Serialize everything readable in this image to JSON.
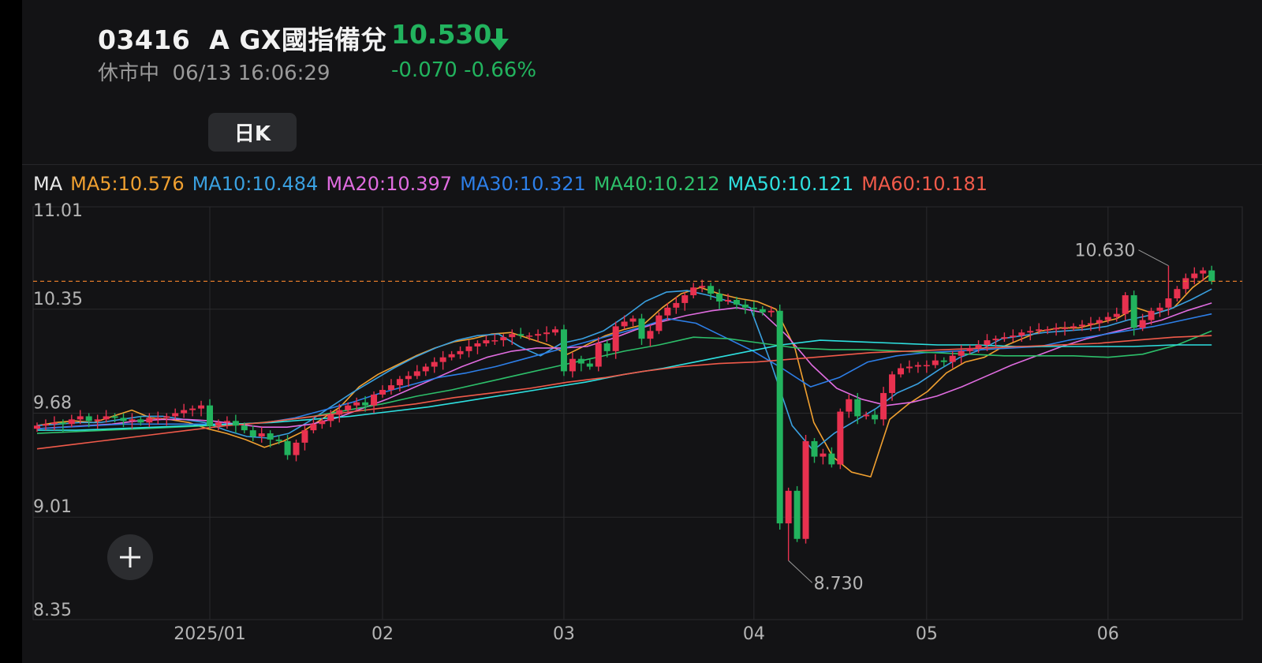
{
  "header": {
    "symbol": "03416  A GX國指備兌",
    "price": "10.530",
    "status": "休市中  06/13 16:06:29",
    "change": "-0.070 -0.66%",
    "down_color": "#22b35e",
    "up_color": "#e8314f",
    "direction_icon": "arrow-down-icon"
  },
  "period_tab": {
    "label": "日K"
  },
  "ma_legend": [
    {
      "label": "MA",
      "color": "#e8e8e8"
    },
    {
      "label": "MA5:10.576",
      "color": "#f0a030"
    },
    {
      "label": "MA10:10.484",
      "color": "#3aa0e0"
    },
    {
      "label": "MA20:10.397",
      "color": "#e06ce0"
    },
    {
      "label": "MA30:10.321",
      "color": "#2d7fe8"
    },
    {
      "label": "MA40:10.212",
      "color": "#2dbf6a"
    },
    {
      "label": "MA50:10.121",
      "color": "#2ee0e0"
    },
    {
      "label": "MA60:10.181",
      "color": "#f05a4a"
    }
  ],
  "add_button": {
    "icon": "plus-icon"
  },
  "chart_data": {
    "type": "candlestick",
    "ylim": [
      8.35,
      11.01
    ],
    "y_ticks": [
      "11.01",
      "10.35",
      "9.68",
      "9.01",
      "8.35"
    ],
    "x_ticks": [
      "2025/01",
      "02",
      "03",
      "04",
      "05",
      "06"
    ],
    "x_tick_index": [
      20,
      40,
      61,
      83,
      103,
      124
    ],
    "last_close": 10.53,
    "annotations": [
      {
        "label": "10.630",
        "index": 131,
        "value": 10.63
      },
      {
        "label": "8.730",
        "index": 87,
        "value": 8.73
      }
    ],
    "closes": [
      9.6,
      9.61,
      9.62,
      9.61,
      9.64,
      9.66,
      9.63,
      9.64,
      9.66,
      9.65,
      9.63,
      9.64,
      9.62,
      9.65,
      9.65,
      9.66,
      9.68,
      9.7,
      9.71,
      9.73,
      9.6,
      9.62,
      9.63,
      9.6,
      9.57,
      9.53,
      9.55,
      9.51,
      9.5,
      9.41,
      9.49,
      9.57,
      9.61,
      9.63,
      9.67,
      9.7,
      9.73,
      9.75,
      9.73,
      9.8,
      9.83,
      9.86,
      9.9,
      9.92,
      9.95,
      9.98,
      10.01,
      10.04,
      10.06,
      10.08,
      10.11,
      10.13,
      10.15,
      10.15,
      10.17,
      10.19,
      10.18,
      10.18,
      10.19,
      10.2,
      10.22,
      9.95,
      10.03,
      10.0,
      9.98,
      10.13,
      10.08,
      10.24,
      10.27,
      10.29,
      10.16,
      10.21,
      10.31,
      10.36,
      10.39,
      10.44,
      10.49,
      10.5,
      10.45,
      10.4,
      10.41,
      10.38,
      10.36,
      10.35,
      10.33,
      10.34,
      8.97,
      9.18,
      8.87,
      9.5,
      9.4,
      9.42,
      9.35,
      9.69,
      9.77,
      9.66,
      9.67,
      9.64,
      9.81,
      9.93,
      9.97,
      9.98,
      9.99,
      9.99,
      10.02,
      10.01,
      10.05,
      10.08,
      10.1,
      10.12,
      10.15,
      10.16,
      10.17,
      10.18,
      10.2,
      10.21,
      10.22,
      10.22,
      10.23,
      10.23,
      10.24,
      10.25,
      10.26,
      10.28,
      10.3,
      10.32,
      10.44,
      10.23,
      10.28,
      10.34,
      10.36,
      10.42,
      10.48,
      10.55,
      10.58,
      10.6,
      10.53
    ],
    "ma_series": {
      "MA5": [
        9.6,
        9.62,
        9.63,
        9.62,
        9.66,
        9.7,
        9.65,
        9.64,
        9.62,
        9.58,
        9.55,
        9.51,
        9.46,
        9.5,
        9.56,
        9.64,
        9.72,
        9.85,
        9.93,
        9.99,
        10.05,
        10.1,
        10.14,
        10.16,
        10.19,
        10.2,
        10.16,
        10.12,
        10.06,
        10.12,
        10.18,
        10.22,
        10.25,
        10.36,
        10.45,
        10.49,
        10.45,
        10.42,
        10.4,
        10.35,
        10.1,
        9.62,
        9.4,
        9.3,
        9.27,
        9.64,
        9.74,
        9.82,
        9.94,
        10.01,
        10.04,
        10.11,
        10.16,
        10.21,
        10.23,
        10.23,
        10.26,
        10.29,
        10.36,
        10.32,
        10.36,
        10.49,
        10.58
      ],
      "MA10": [
        9.6,
        9.61,
        9.62,
        9.62,
        9.64,
        9.66,
        9.66,
        9.64,
        9.62,
        9.57,
        9.53,
        9.52,
        9.55,
        9.63,
        9.72,
        9.81,
        9.89,
        9.97,
        10.04,
        10.1,
        10.15,
        10.18,
        10.19,
        10.11,
        10.05,
        10.13,
        10.16,
        10.21,
        10.3,
        10.4,
        10.46,
        10.47,
        10.44,
        10.4,
        10.36,
        10.0,
        9.6,
        9.44,
        9.55,
        9.63,
        9.71,
        9.81,
        9.87,
        9.96,
        10.04,
        10.09,
        10.16,
        10.18,
        10.2,
        10.21,
        10.22,
        10.24,
        10.28,
        10.31,
        10.35,
        10.41,
        10.48
      ],
      "MA20": [
        9.58,
        9.59,
        9.6,
        9.61,
        9.63,
        9.64,
        9.64,
        9.63,
        9.61,
        9.59,
        9.59,
        9.61,
        9.65,
        9.71,
        9.77,
        9.84,
        9.91,
        9.98,
        10.04,
        10.08,
        10.1,
        10.1,
        10.11,
        10.16,
        10.22,
        10.27,
        10.31,
        10.34,
        10.36,
        10.33,
        10.18,
        9.99,
        9.84,
        9.77,
        9.73,
        9.75,
        9.79,
        9.85,
        9.92,
        9.99,
        10.05,
        10.11,
        10.16,
        10.2,
        10.24,
        10.28,
        10.34,
        10.39
      ],
      "MA30": [
        9.58,
        9.59,
        9.6,
        9.61,
        9.61,
        9.61,
        9.61,
        9.61,
        9.62,
        9.65,
        9.7,
        9.75,
        9.81,
        9.86,
        9.91,
        9.94,
        9.98,
        10.03,
        10.08,
        10.13,
        10.18,
        10.23,
        10.29,
        10.26,
        10.17,
        10.08,
        9.97,
        9.85,
        9.91,
        10.01,
        10.05,
        10.07,
        10.08,
        10.09,
        10.1,
        10.11,
        10.15,
        10.18,
        10.21,
        10.24,
        10.28,
        10.32
      ],
      "MA40": [
        9.55,
        9.56,
        9.57,
        9.58,
        9.59,
        9.6,
        9.61,
        9.63,
        9.66,
        9.7,
        9.74,
        9.79,
        9.83,
        9.88,
        9.93,
        9.98,
        10.03,
        10.08,
        10.12,
        10.17,
        10.16,
        10.13,
        10.1,
        10.09,
        10.09,
        10.08,
        10.07,
        10.06,
        10.05,
        10.05,
        10.05,
        10.04,
        10.06,
        10.12,
        10.21
      ],
      "MA50": [
        9.57,
        9.57,
        9.58,
        9.59,
        9.6,
        9.61,
        9.62,
        9.64,
        9.66,
        9.69,
        9.72,
        9.76,
        9.8,
        9.84,
        9.88,
        9.93,
        9.97,
        10.02,
        10.07,
        10.12,
        10.15,
        10.14,
        10.13,
        10.12,
        10.12,
        10.11,
        10.11,
        10.11,
        10.11,
        10.12,
        10.12
      ],
      "MA60": [
        9.45,
        9.48,
        9.51,
        9.54,
        9.57,
        9.6,
        9.62,
        9.65,
        9.68,
        9.71,
        9.74,
        9.78,
        9.81,
        9.84,
        9.88,
        9.91,
        9.95,
        9.98,
        10.0,
        10.01,
        10.03,
        10.05,
        10.07,
        10.08,
        10.09,
        10.1,
        10.11,
        10.12,
        10.13,
        10.15,
        10.17,
        10.18
      ]
    }
  }
}
